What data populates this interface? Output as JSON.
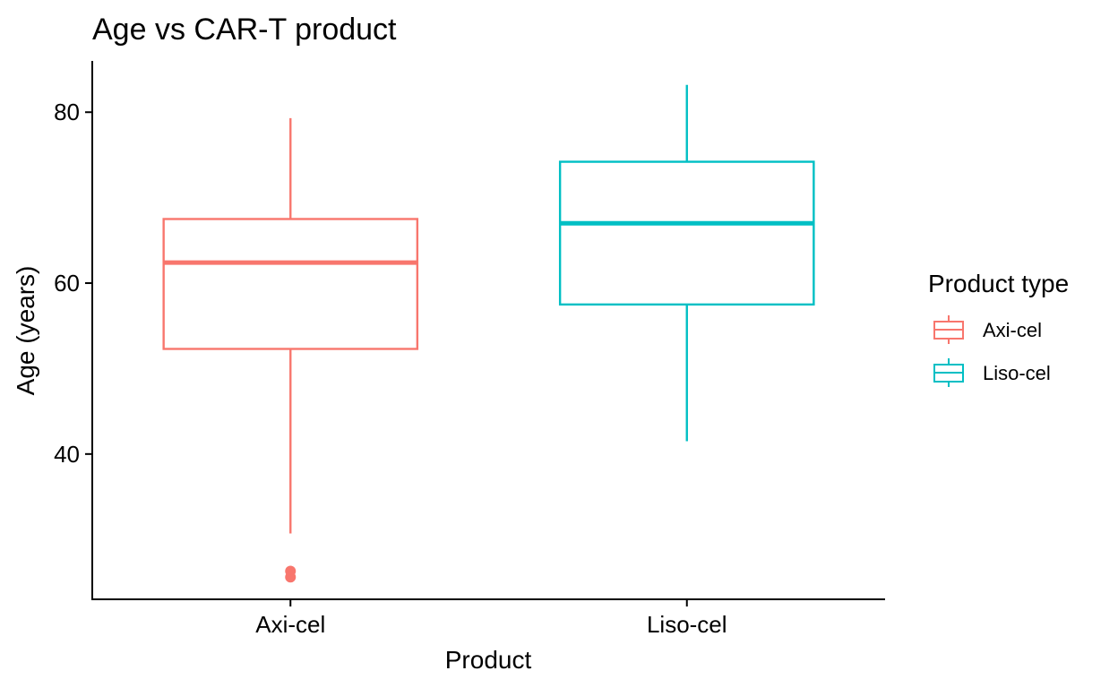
{
  "chart_data": {
    "type": "boxplot",
    "title": "Age vs CAR-T product",
    "xlabel": "Product",
    "ylabel": "Age (years)",
    "ylim": [
      23,
      86
    ],
    "yticks": [
      40,
      60,
      80
    ],
    "categories": [
      "Axi-cel",
      "Liso-cel"
    ],
    "series": [
      {
        "name": "Axi-cel",
        "color": "#F8766D",
        "whisker_low": 30.7,
        "q1": 52.3,
        "median": 62.4,
        "q3": 67.5,
        "whisker_high": 79.3,
        "outliers": [
          26.3,
          25.6
        ]
      },
      {
        "name": "Liso-cel",
        "color": "#00BFC4",
        "whisker_low": 41.5,
        "q1": 57.5,
        "median": 67.0,
        "q3": 74.2,
        "whisker_high": 83.2,
        "outliers": []
      }
    ],
    "grid": false,
    "legend": {
      "title": "Product type",
      "position": "right"
    }
  }
}
